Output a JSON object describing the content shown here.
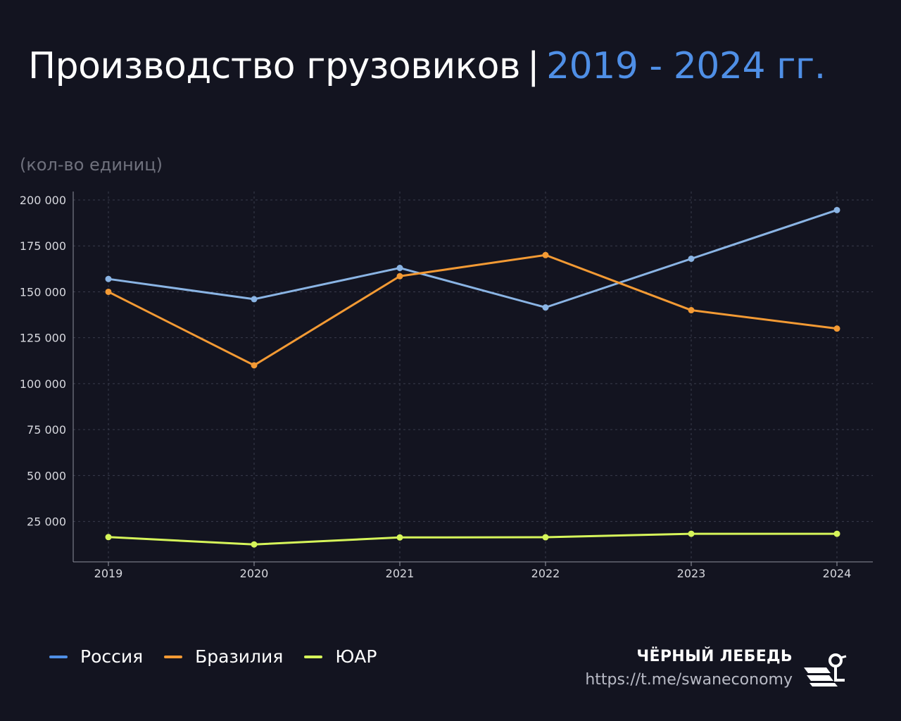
{
  "header": {
    "title_main": "Производство грузовиков",
    "title_sep": "|",
    "title_years": "2019 - 2024 гг."
  },
  "unit_label": "(кол-во единиц)",
  "colors": {
    "background": "#131420",
    "title_accent": "#4f8fe6",
    "grid": "#3a3c4c"
  },
  "chart_data": {
    "type": "line",
    "x": [
      "2019",
      "2020",
      "2021",
      "2022",
      "2023",
      "2024"
    ],
    "ylim": [
      3000,
      200000
    ],
    "yticks": [
      25000,
      50000,
      75000,
      100000,
      125000,
      150000,
      175000,
      200000
    ],
    "ytick_labels": [
      "25 000",
      "50 000",
      "75 000",
      "100 000",
      "125 000",
      "150 000",
      "175 000",
      "200 000"
    ],
    "grid": true,
    "legend_position": "bottom-left",
    "series": [
      {
        "name": "Россия",
        "color": "#8ab4e4",
        "legend_color": "#4f8fe6",
        "values": [
          157000,
          146000,
          163000,
          141500,
          168000,
          194500
        ]
      },
      {
        "name": "Бразилия",
        "color": "#f39a34",
        "legend_color": "#f39a34",
        "values": [
          150000,
          110000,
          158500,
          170000,
          140000,
          130000
        ]
      },
      {
        "name": "ЮАР",
        "color": "#d6f55a",
        "legend_color": "#d6f55a",
        "values": [
          16500,
          12500,
          16300,
          16400,
          18300,
          18300
        ]
      }
    ]
  },
  "brand": {
    "name": "ЧЁРНЫЙ ЛЕБЕДЬ",
    "url": "https://t.me/swaneconomy",
    "logo_icon": "swan-logo-icon"
  }
}
